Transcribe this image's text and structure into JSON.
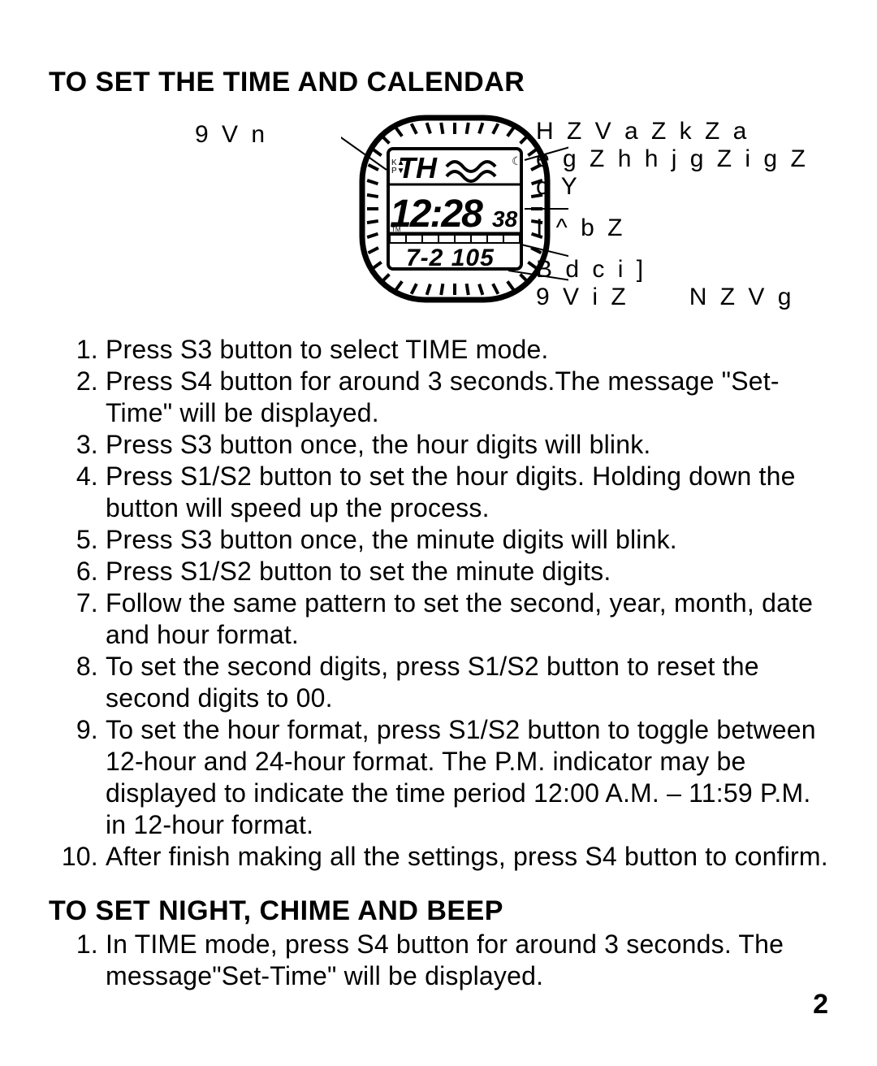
{
  "page": {
    "heading1": "TO SET THE TIME AND CALENDAR",
    "heading2": "TO SET NIGHT, CHIME AND BEEP",
    "page_number": "2"
  },
  "diagram": {
    "left_label": "9 V n",
    "right": {
      "line1a": "H Z V   a Z k Z a",
      "line1b": "e g Z h h j g Z   i g Z c Y",
      "line2": "I ^ b Z",
      "line3a": "B d c i ]",
      "line3b": "9 V i Z      N Z V g"
    },
    "display": {
      "top_text": "TH",
      "time": "12:28",
      "seconds": "38",
      "date": "7-2 105"
    },
    "style": {
      "stroke": "#000000",
      "fill_bg": "#ffffff",
      "tick_count": 40
    }
  },
  "steps_time": [
    "Press S3 button to select TIME mode.",
    "Press S4 button for around 3 seconds.The message \"Set-Time\" will be displayed.",
    "Press S3 button once, the hour digits will blink.",
    "Press S1/S2 button to set the hour digits. Holding down the button will speed up the process.",
    "Press S3 button once, the minute digits will blink.",
    "Press S1/S2 button to set the minute digits.",
    "Follow the same pattern to set the second, year, month, date and hour format.",
    "To set the second digits, press S1/S2 button to reset the second digits to 00.",
    "To set the hour format, press S1/S2 button to toggle between 12-hour and 24-hour format. The P.M. indicator may be displayed to indicate the time period 12:00 A.M. – 11:59 P.M. in 12-hour format.",
    "After finish making all the settings, press S4 button to confirm."
  ],
  "steps_night": [
    "In TIME mode, press S4 button for around 3 seconds. The message\"Set-Time\" will be displayed."
  ]
}
